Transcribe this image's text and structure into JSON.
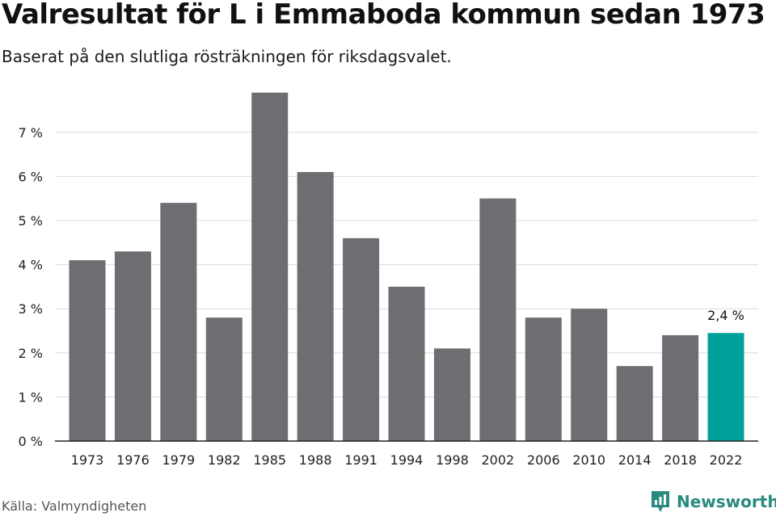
{
  "title": "Valresultat för L i Emmaboda kommun sedan 1973",
  "subtitle": "Baserat på den slutliga rösträkningen för riksdagsvalet.",
  "source": "Källa: Valmyndigheten",
  "brand": {
    "name": "Newsworthy",
    "icon": "newsworthy-logo-icon",
    "color": "#2a8a7f"
  },
  "colors": {
    "bar": "#6e6d72",
    "highlight": "#00a19a",
    "grid": "#dcdcdc",
    "axis": "#222222"
  },
  "chart_data": {
    "type": "bar",
    "title": "Valresultat för L i Emmaboda kommun sedan 1973",
    "subtitle": "Baserat på den slutliga rösträkningen för riksdagsvalet.",
    "xlabel": "",
    "ylabel": "",
    "categories": [
      "1973",
      "1976",
      "1979",
      "1982",
      "1985",
      "1988",
      "1991",
      "1994",
      "1998",
      "2002",
      "2006",
      "2010",
      "2014",
      "2018",
      "2022"
    ],
    "values": [
      4.1,
      4.3,
      5.4,
      2.8,
      7.9,
      6.1,
      4.6,
      3.5,
      2.1,
      5.5,
      2.8,
      3.0,
      1.7,
      2.4,
      2.45
    ],
    "ylim": [
      0,
      8
    ],
    "y_ticks": [
      0,
      1,
      2,
      3,
      4,
      5,
      6,
      7
    ],
    "y_tick_labels": [
      "0 %",
      "1 %",
      "2 %",
      "3 %",
      "4 %",
      "5 %",
      "6 %",
      "7 %"
    ],
    "grid": true,
    "legend": "none",
    "highlight_category": "2022",
    "annotations": [
      {
        "category": "2022",
        "text": "2,4 %"
      }
    ]
  }
}
